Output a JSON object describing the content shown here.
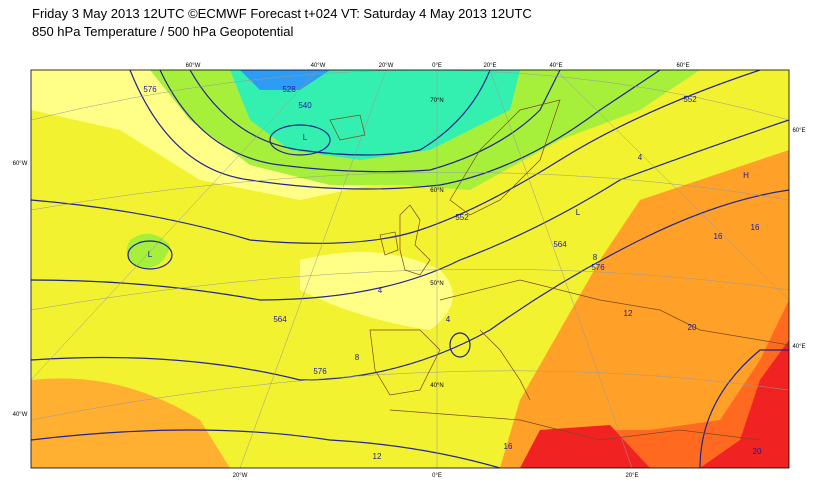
{
  "header": {
    "title": "Friday 3 May 2013 12UTC ©ECMWF Forecast t+024 VT: Saturday 4 May 2013 12UTC",
    "subtitle": "850 hPa Temperature / 500 hPa Geopotential"
  },
  "map": {
    "top_lon_labels": [
      "60°W",
      "40°W",
      "20°W",
      "0°E",
      "20°E",
      "40°E",
      "60°E"
    ],
    "bottom_lon_labels": [
      "20°W",
      "0°E",
      "20°E"
    ],
    "side_labels": [
      "60°W",
      "40°W",
      "60°E",
      "40°E"
    ],
    "lat_labels": [
      "70°N",
      "60°N",
      "50°N",
      "40°N"
    ],
    "contour_labels": [
      "576",
      "528",
      "540",
      "552",
      "4",
      "552",
      "564",
      "576",
      "16",
      "16",
      "12",
      "20",
      "564",
      "576",
      "8",
      "4",
      "4",
      "8",
      "12",
      "16",
      "20",
      "L",
      "L",
      "L",
      "H"
    ]
  }
}
